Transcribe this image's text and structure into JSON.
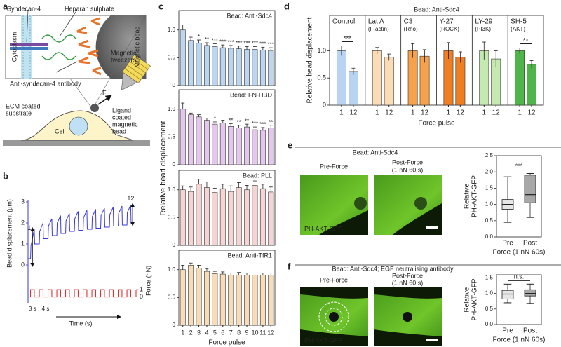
{
  "figure": {
    "labels": [
      "a",
      "b",
      "c",
      "d",
      "e",
      "f"
    ],
    "schematic": {
      "syndecan": "Syndecan-4",
      "heparan": "Heparan sulphate",
      "cytoplasm": "Cytoplasm",
      "bead": "Magnetic bead",
      "antibody": "Anti-syndecan-4 antibody",
      "tweezers": [
        "Magnetic",
        "tweezers"
      ],
      "force": "F",
      "ligand_bead": [
        "Ligand",
        "coated",
        "magnetic",
        "bead"
      ],
      "substrate": [
        "ECM coated",
        "substrate"
      ],
      "cell": "Cell"
    },
    "e": {
      "title": "Bead: Anti-Sdc4",
      "pre": "Pre-Force",
      "post": [
        "Post-Force",
        "(1 nN 60 s)"
      ],
      "channel": "PH-AKT-GFP"
    },
    "f": {
      "title": "Bead: Anti-Sdc4; EGF neutralising antibody",
      "pre": "Pre-Force",
      "post": [
        "Post-Force",
        "(1 nN 60 s)"
      ],
      "channel": "PH-AKT-GFP"
    }
  },
  "chart_data": [
    {
      "type": "line",
      "ylabel": "Bead displacement (μm)",
      "y2label": "Force (nN)",
      "xlabel": "Time (s)",
      "annotations": [
        "1",
        "12",
        "3 s",
        "4 s"
      ],
      "xlim": [
        0,
        84
      ],
      "ylim": [
        -1.8,
        3.1
      ],
      "yticks": [
        0,
        1,
        2,
        3
      ],
      "y2lim": [
        -0.8,
        13.2
      ],
      "y2ticks": [
        0,
        1
      ],
      "series": [
        {
          "color": "#3a3adb",
          "x": [
            0,
            2,
            2.3,
            5,
            5.3,
            9,
            9.3,
            12,
            12.3,
            16,
            16.3,
            19,
            19.3,
            23,
            23.3,
            26,
            26.3,
            30,
            30.3,
            33,
            33.3,
            37,
            37.3,
            40,
            40.3,
            44,
            44.3,
            47,
            47.3,
            51,
            51.3,
            54,
            54.3,
            58,
            58.3,
            61,
            61.3,
            65,
            65.3,
            68,
            68.3,
            72,
            72.3,
            75,
            75.3,
            79,
            79.3,
            82,
            82.3,
            84
          ],
          "values": [
            0.3,
            0.3,
            0.9,
            1.7,
            1.0,
            1.0,
            1.6,
            2.0,
            1.25,
            1.25,
            1.85,
            2.2,
            1.4,
            1.4,
            2.0,
            2.35,
            1.5,
            1.5,
            2.1,
            2.45,
            1.6,
            1.6,
            2.2,
            2.55,
            1.65,
            1.65,
            2.25,
            2.6,
            1.7,
            1.7,
            2.3,
            2.65,
            1.75,
            1.75,
            2.35,
            2.7,
            1.8,
            1.8,
            2.4,
            2.75,
            1.85,
            1.85,
            2.45,
            2.8,
            1.9,
            1.9,
            2.5,
            2.85,
            1.95,
            1.95
          ]
        },
        {
          "color": "#e02020",
          "axis": "y2",
          "x": [
            0,
            2,
            2,
            5,
            5,
            9,
            9,
            12,
            12,
            16,
            16,
            19,
            19,
            23,
            23,
            26,
            26,
            30,
            30,
            33,
            33,
            37,
            37,
            40,
            40,
            44,
            44,
            47,
            47,
            51,
            51,
            54,
            54,
            58,
            58,
            61,
            61,
            65,
            65,
            68,
            68,
            72,
            72,
            75,
            75,
            79,
            79,
            82,
            82,
            84
          ],
          "values": [
            0,
            0,
            1,
            1,
            0,
            0,
            1,
            1,
            0,
            0,
            1,
            1,
            0,
            0,
            1,
            1,
            0,
            0,
            1,
            1,
            0,
            0,
            1,
            1,
            0,
            0,
            1,
            1,
            0,
            0,
            1,
            1,
            0,
            0,
            1,
            1,
            0,
            0,
            1,
            1,
            0,
            0,
            1,
            1,
            0,
            0,
            1,
            1,
            0,
            0
          ]
        }
      ]
    },
    {
      "type": "bar",
      "title": "Bead: Anti-Sdc4",
      "ylabel": "Relative bead displacement",
      "color": "#bcd5f0",
      "values": [
        1.0,
        0.81,
        0.76,
        0.72,
        0.7,
        0.68,
        0.67,
        0.66,
        0.65,
        0.65,
        0.64,
        0.63
      ],
      "errors": [
        0.09,
        0.06,
        0.06,
        0.05,
        0.05,
        0.05,
        0.05,
        0.05,
        0.05,
        0.05,
        0.05,
        0.05
      ],
      "annotations": [
        null,
        null,
        "*",
        "**",
        "***",
        "***",
        "***",
        "***",
        "***",
        "***",
        "***",
        "***"
      ],
      "ylim": [
        0,
        1.35
      ],
      "yticks": [
        0,
        0.5,
        {
          "value": 1,
          "label": "1.0"
        }
      ]
    },
    {
      "type": "bar",
      "title": "Bead: FN-HBD",
      "color": "#e4c6ef",
      "values": [
        1.0,
        0.9,
        0.86,
        0.8,
        0.73,
        0.75,
        0.69,
        0.66,
        0.68,
        0.63,
        0.62,
        0.66
      ],
      "errors": [
        0.11,
        0.03,
        0.04,
        0.04,
        0.04,
        0.05,
        0.05,
        0.05,
        0.05,
        0.05,
        0.05,
        0.05
      ],
      "annotations": [
        null,
        null,
        null,
        null,
        "*",
        null,
        "**",
        "**",
        "**",
        "***",
        "***",
        "**"
      ],
      "ylim": [
        0,
        1.35
      ],
      "yticks": [
        0,
        0.5,
        {
          "value": 1,
          "label": "1.0"
        }
      ]
    },
    {
      "type": "bar",
      "title": "Bead: PLL",
      "color": "#f7d4d4",
      "values": [
        1.0,
        0.97,
        1.1,
        1.04,
        0.95,
        1.02,
        0.97,
        1.04,
        1.0,
        1.08,
        1.02,
        0.96
      ],
      "errors": [
        0.07,
        0.08,
        0.09,
        0.1,
        0.08,
        0.08,
        0.1,
        0.09,
        0.08,
        0.08,
        0.08,
        0.09
      ],
      "ylim": [
        0,
        1.35
      ],
      "yticks": [
        0,
        0.5,
        {
          "value": 1,
          "label": "1.0"
        }
      ]
    },
    {
      "type": "bar",
      "title": "Bead: Anti-TfR1",
      "xlabel": "Force pulse",
      "color": "#f8dbb8",
      "categories": [
        "1",
        "2",
        "3",
        "4",
        "5",
        "6",
        "7",
        "8",
        "9",
        "10",
        "11",
        "12"
      ],
      "values": [
        1.0,
        1.08,
        1.03,
        0.97,
        0.93,
        0.92,
        0.9,
        0.9,
        0.9,
        0.9,
        0.9,
        0.9
      ],
      "errors": [
        0.08,
        0.04,
        0.05,
        0.05,
        0.04,
        0.04,
        0.04,
        0.05,
        0.04,
        0.04,
        0.04,
        0.04
      ],
      "ylim": [
        0,
        1.35
      ],
      "yticks": [
        0,
        0.5,
        {
          "value": 1,
          "label": "1.0"
        }
      ]
    },
    {
      "type": "grouped-bar",
      "title": "Bead: Anti-Sdc4",
      "ylabel": "Relative bead displacement",
      "xlabel": "Force pulse",
      "categories": [
        "1",
        "12"
      ],
      "ylim": [
        0,
        1.65
      ],
      "yticks": [
        0,
        0.5,
        {
          "value": 1,
          "label": "1.0"
        }
      ],
      "series": [
        {
          "name": "Control",
          "note": null,
          "color": "#b9d3f2",
          "values": [
            1.0,
            0.62
          ],
          "errors": [
            0.09,
            0.06
          ],
          "annotation": "***"
        },
        {
          "name": "Lat A",
          "note": "(F-actin)",
          "color": "#fcdcb5",
          "values": [
            1.0,
            0.88
          ],
          "errors": [
            0.06,
            0.06
          ],
          "annotation": null
        },
        {
          "name": "C3",
          "note": "(Rho)",
          "color": "#f8a04a",
          "values": [
            1.0,
            0.9
          ],
          "errors": [
            0.13,
            0.12
          ],
          "annotation": null
        },
        {
          "name": "Y-27",
          "note": "(ROCK)",
          "color": "#f07f22",
          "values": [
            1.0,
            0.88
          ],
          "errors": [
            0.15,
            0.1
          ],
          "annotation": null
        },
        {
          "name": "LY-29",
          "note": "(PI3K)",
          "color": "#c5eab0",
          "values": [
            1.0,
            0.85
          ],
          "errors": [
            0.16,
            0.15
          ],
          "annotation": null
        },
        {
          "name": "SH-5",
          "note": "(AKT)",
          "color": "#4fb54a",
          "values": [
            1.0,
            0.75
          ],
          "errors": [
            0.05,
            0.07
          ],
          "annotation": "**"
        }
      ]
    },
    {
      "type": "box",
      "ylabel": [
        "Relative",
        "PH-AKT-GFP"
      ],
      "xlabel": "Force (1 nN 60s)",
      "categories": [
        "Pre",
        "Post"
      ],
      "colors": [
        "#e6e6e6",
        "#a8a8a8"
      ],
      "boxes": [
        {
          "min": 0.45,
          "q1": 0.85,
          "median": 1.0,
          "q3": 1.15,
          "max": 1.85
        },
        {
          "min": 0.6,
          "q1": 1.05,
          "median": 1.3,
          "q3": 1.9,
          "max": 1.95
        }
      ],
      "annotation": "***",
      "ylim": [
        0,
        2.5
      ],
      "yticks": [
        {
          "value": 0,
          "label": "0.0"
        },
        0.5,
        {
          "value": 1,
          "label": "1.0"
        },
        1.5,
        {
          "value": 2,
          "label": "2.0"
        },
        2.5
      ]
    },
    {
      "type": "box",
      "ylabel": [
        "Relative",
        "PH-AKT-GFP"
      ],
      "xlabel": "Force (1 nN 60s)",
      "categories": [
        "Pre",
        "Post"
      ],
      "colors": [
        "#e6e6e6",
        "#a8a8a8"
      ],
      "boxes": [
        {
          "min": 0.7,
          "q1": 0.82,
          "median": 0.98,
          "q3": 1.1,
          "max": 1.3
        },
        {
          "min": 0.68,
          "q1": 0.92,
          "median": 1.0,
          "q3": 1.12,
          "max": 1.3
        }
      ],
      "annotation": "n.s.",
      "ylim": [
        0,
        1.6
      ],
      "yticks": [
        {
          "value": 0,
          "label": "0.0"
        },
        0.5,
        {
          "value": 1,
          "label": "1.0"
        },
        1.5
      ]
    }
  ]
}
